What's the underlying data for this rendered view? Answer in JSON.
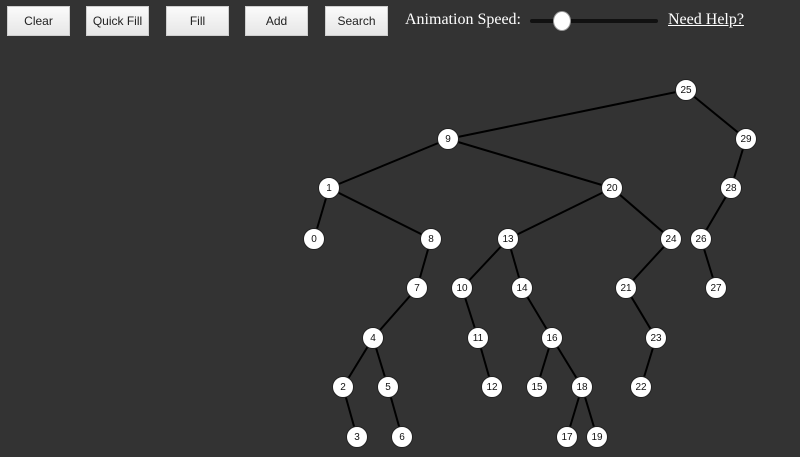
{
  "toolbar": {
    "buttons": [
      "Clear",
      "Quick Fill",
      "Fill",
      "Add",
      "Search"
    ],
    "speed_label": "Animation Speed:",
    "speed_value": 0.25,
    "help_link": "Need Help?"
  },
  "tree": {
    "root": 25,
    "nodes": [
      {
        "value": 25,
        "parent": null
      },
      {
        "value": 9,
        "parent": 25
      },
      {
        "value": 29,
        "parent": 25
      },
      {
        "value": 1,
        "parent": 9
      },
      {
        "value": 20,
        "parent": 9
      },
      {
        "value": 28,
        "parent": 29
      },
      {
        "value": 0,
        "parent": 1
      },
      {
        "value": 8,
        "parent": 1
      },
      {
        "value": 13,
        "parent": 20
      },
      {
        "value": 24,
        "parent": 20
      },
      {
        "value": 26,
        "parent": 28
      },
      {
        "value": 7,
        "parent": 8
      },
      {
        "value": 10,
        "parent": 13
      },
      {
        "value": 14,
        "parent": 13
      },
      {
        "value": 21,
        "parent": 24
      },
      {
        "value": 27,
        "parent": 26
      },
      {
        "value": 4,
        "parent": 7
      },
      {
        "value": 11,
        "parent": 10
      },
      {
        "value": 16,
        "parent": 14
      },
      {
        "value": 23,
        "parent": 21
      },
      {
        "value": 2,
        "parent": 4
      },
      {
        "value": 5,
        "parent": 4
      },
      {
        "value": 12,
        "parent": 11
      },
      {
        "value": 15,
        "parent": 16
      },
      {
        "value": 18,
        "parent": 16
      },
      {
        "value": 22,
        "parent": 23
      },
      {
        "value": 3,
        "parent": 2
      },
      {
        "value": 6,
        "parent": 5
      },
      {
        "value": 17,
        "parent": 18
      },
      {
        "value": 19,
        "parent": 18
      }
    ]
  }
}
